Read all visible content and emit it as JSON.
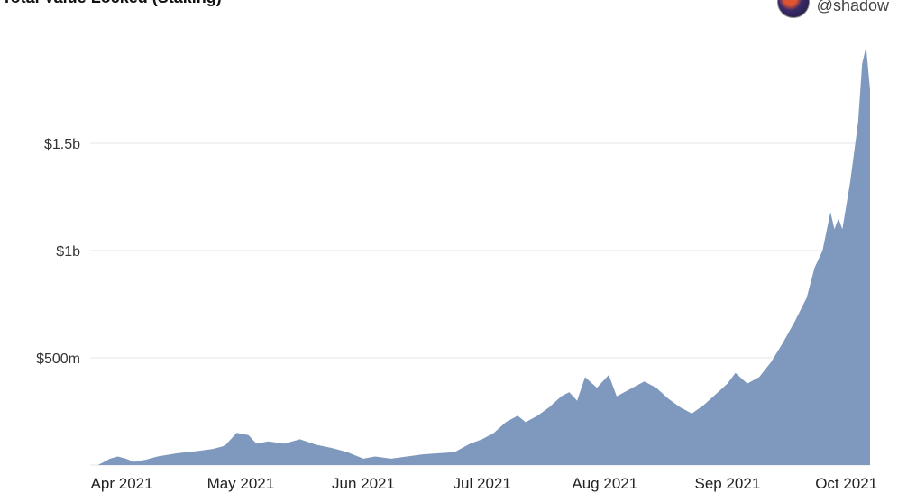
{
  "header": {
    "title": "Total Value Locked (Staking)",
    "author": "@shadow",
    "avatar_icon": "user-avatar-icon"
  },
  "chart_data": {
    "type": "area",
    "title": "Total Value Locked (Staking)",
    "xlabel": "",
    "ylabel": "",
    "x_tick_labels": [
      "Apr 2021",
      "May 2021",
      "Jun 2021",
      "Jul 2021",
      "Aug 2021",
      "Sep 2021",
      "Oct 2021"
    ],
    "y_tick_labels": [
      "$500m",
      "$1b",
      "$1.5b"
    ],
    "y_ticks": [
      500000000,
      1000000000,
      1500000000
    ],
    "ylim": [
      0,
      2000000000
    ],
    "xlim": [
      "2021-03-24",
      "2021-10-07"
    ],
    "grid": true,
    "color": "#7f98bd",
    "series": [
      {
        "points": [
          [
            "2021-03-26",
            0
          ],
          [
            "2021-03-29",
            30000000
          ],
          [
            "2021-03-31",
            40000000
          ],
          [
            "2021-04-02",
            30000000
          ],
          [
            "2021-04-04",
            15000000
          ],
          [
            "2021-04-07",
            25000000
          ],
          [
            "2021-04-10",
            40000000
          ],
          [
            "2021-04-15",
            55000000
          ],
          [
            "2021-04-20",
            65000000
          ],
          [
            "2021-04-24",
            75000000
          ],
          [
            "2021-04-27",
            90000000
          ],
          [
            "2021-04-30",
            150000000
          ],
          [
            "2021-05-03",
            140000000
          ],
          [
            "2021-05-05",
            100000000
          ],
          [
            "2021-05-08",
            110000000
          ],
          [
            "2021-05-12",
            100000000
          ],
          [
            "2021-05-16",
            120000000
          ],
          [
            "2021-05-20",
            95000000
          ],
          [
            "2021-05-24",
            80000000
          ],
          [
            "2021-05-28",
            60000000
          ],
          [
            "2021-06-01",
            30000000
          ],
          [
            "2021-06-04",
            40000000
          ],
          [
            "2021-06-08",
            30000000
          ],
          [
            "2021-06-12",
            40000000
          ],
          [
            "2021-06-16",
            50000000
          ],
          [
            "2021-06-20",
            55000000
          ],
          [
            "2021-06-24",
            60000000
          ],
          [
            "2021-06-28",
            100000000
          ],
          [
            "2021-07-01",
            120000000
          ],
          [
            "2021-07-04",
            150000000
          ],
          [
            "2021-07-07",
            200000000
          ],
          [
            "2021-07-10",
            230000000
          ],
          [
            "2021-07-12",
            200000000
          ],
          [
            "2021-07-15",
            230000000
          ],
          [
            "2021-07-18",
            270000000
          ],
          [
            "2021-07-21",
            320000000
          ],
          [
            "2021-07-23",
            340000000
          ],
          [
            "2021-07-25",
            300000000
          ],
          [
            "2021-07-27",
            410000000
          ],
          [
            "2021-07-30",
            360000000
          ],
          [
            "2021-08-02",
            420000000
          ],
          [
            "2021-08-04",
            320000000
          ],
          [
            "2021-08-08",
            360000000
          ],
          [
            "2021-08-11",
            390000000
          ],
          [
            "2021-08-14",
            360000000
          ],
          [
            "2021-08-17",
            310000000
          ],
          [
            "2021-08-20",
            270000000
          ],
          [
            "2021-08-23",
            240000000
          ],
          [
            "2021-08-26",
            280000000
          ],
          [
            "2021-08-29",
            330000000
          ],
          [
            "2021-09-01",
            380000000
          ],
          [
            "2021-09-03",
            430000000
          ],
          [
            "2021-09-06",
            380000000
          ],
          [
            "2021-09-09",
            410000000
          ],
          [
            "2021-09-12",
            480000000
          ],
          [
            "2021-09-15",
            570000000
          ],
          [
            "2021-09-18",
            670000000
          ],
          [
            "2021-09-21",
            780000000
          ],
          [
            "2021-09-23",
            920000000
          ],
          [
            "2021-09-25",
            1000000000
          ],
          [
            "2021-09-27",
            1180000000
          ],
          [
            "2021-09-28",
            1100000000
          ],
          [
            "2021-09-29",
            1150000000
          ],
          [
            "2021-09-30",
            1100000000
          ],
          [
            "2021-10-02",
            1320000000
          ],
          [
            "2021-10-04",
            1600000000
          ],
          [
            "2021-10-05",
            1870000000
          ],
          [
            "2021-10-06",
            1950000000
          ],
          [
            "2021-10-07",
            1750000000
          ]
        ]
      }
    ]
  }
}
